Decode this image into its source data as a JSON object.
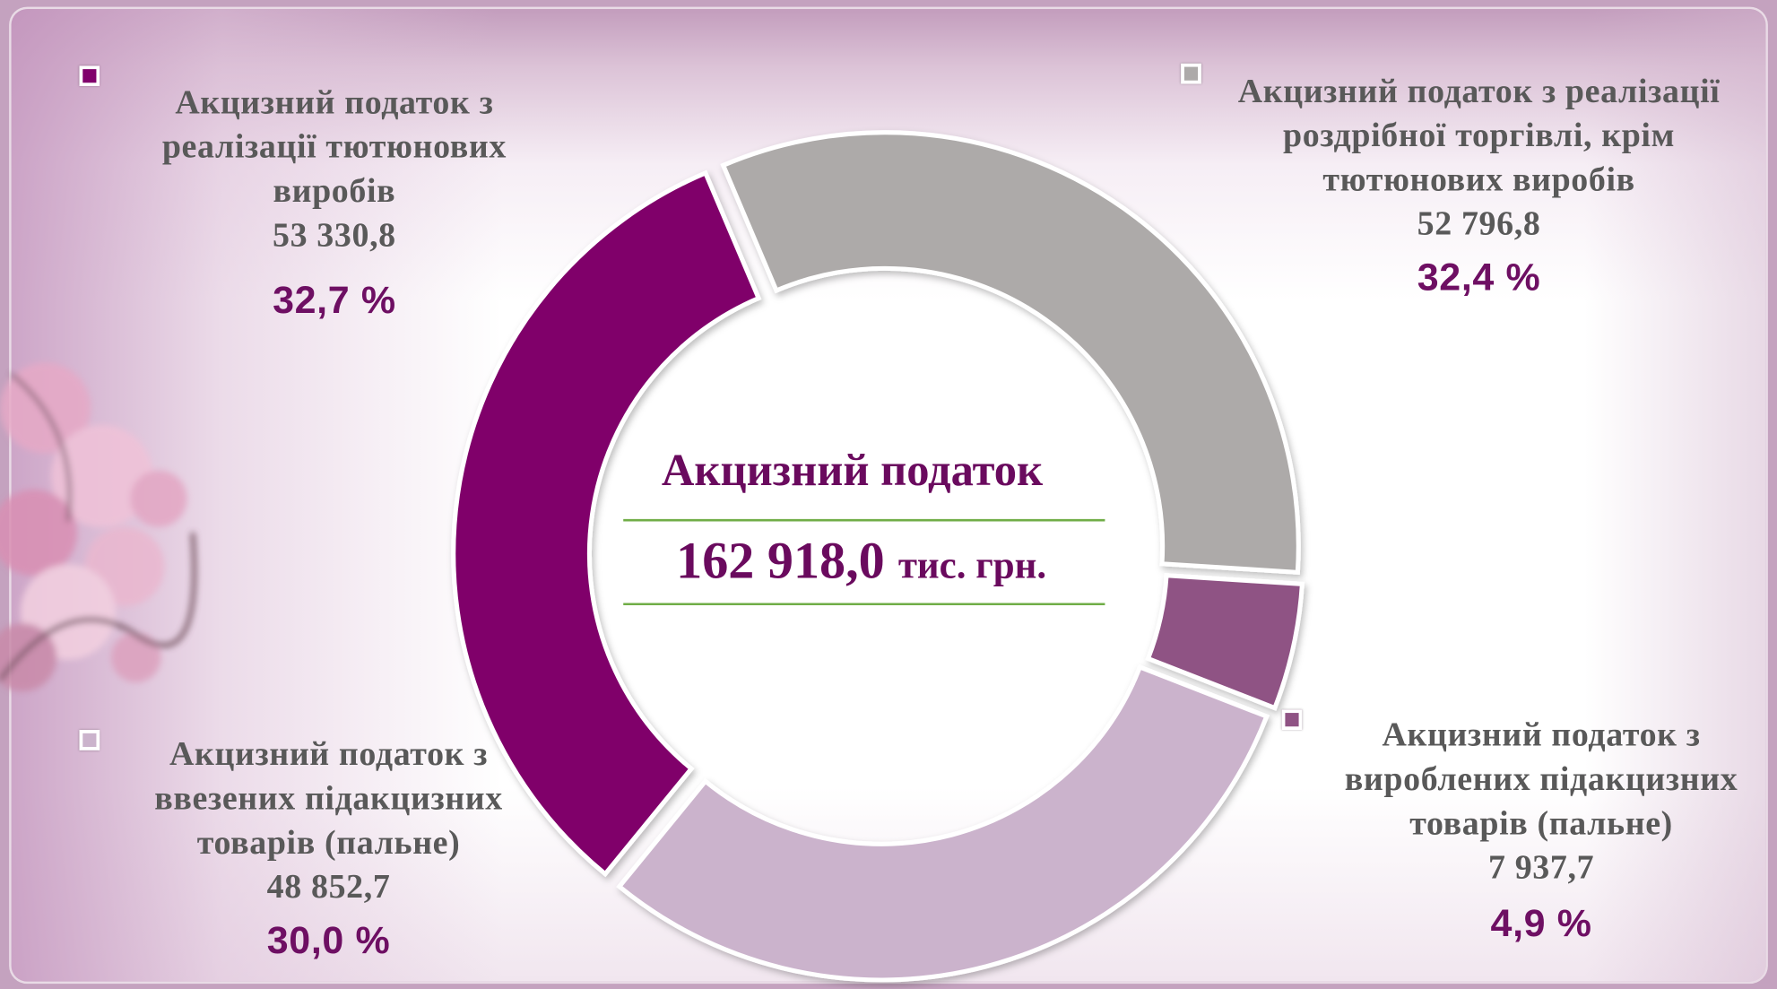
{
  "chart_data": {
    "type": "donut",
    "categories": [
      "Акцизний податок з реалізації роздрібної торгівлі, крім тютюнових виробів",
      "Акцизний податок з вироблених підакцизних товарів (пальне)",
      "Акцизний податок з ввезених підакцизних товарів (пальне)",
      "Акцизний податок з реалізації тютюнових виробів"
    ],
    "values": [
      52796.8,
      7937.7,
      48852.7,
      53330.8
    ],
    "value_labels": [
      "52 796,8",
      "7 937,7",
      "48 852,7",
      "53 330,8"
    ],
    "percents": [
      32.4,
      4.9,
      30.0,
      32.7
    ],
    "percent_labels": [
      "32,4 %",
      "4,9 %",
      "30,0 %",
      "32,7 %"
    ],
    "colors": [
      "#adaaa9",
      "#8f5384",
      "#cbb3cc",
      "#80006b"
    ],
    "center_title": "Акцизний податок",
    "total": 162918.0,
    "total_label": "162 918,0",
    "unit": "тис. грн."
  }
}
